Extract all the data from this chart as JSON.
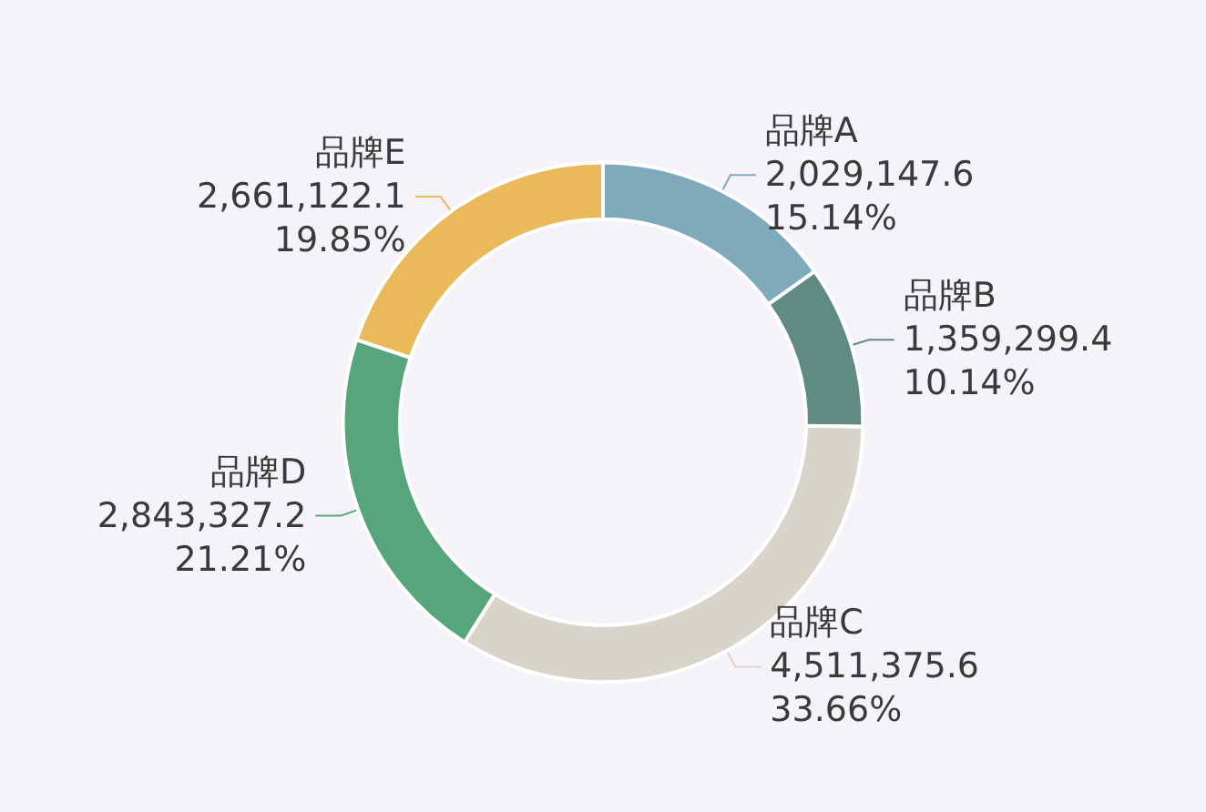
{
  "chart_data": {
    "type": "donut",
    "categories": [
      "品牌A",
      "品牌B",
      "品牌C",
      "品牌D",
      "品牌E"
    ],
    "values": [
      2029147.6,
      1359299.4,
      4511375.6,
      2843327.2,
      2661122.1
    ],
    "value_labels": [
      "2,029,147.6\n15.14%",
      "1,359,299.4\n10.14%",
      "4,511,375.6\n33.66%",
      "2,843,327.2\n21.21%",
      "2,661,122.1\n19.85%"
    ],
    "colors": [
      "#7eaabb",
      "#5f8b82",
      "#d7d4c9",
      "#57a67b",
      "#e9b95a"
    ],
    "legend": false
  }
}
